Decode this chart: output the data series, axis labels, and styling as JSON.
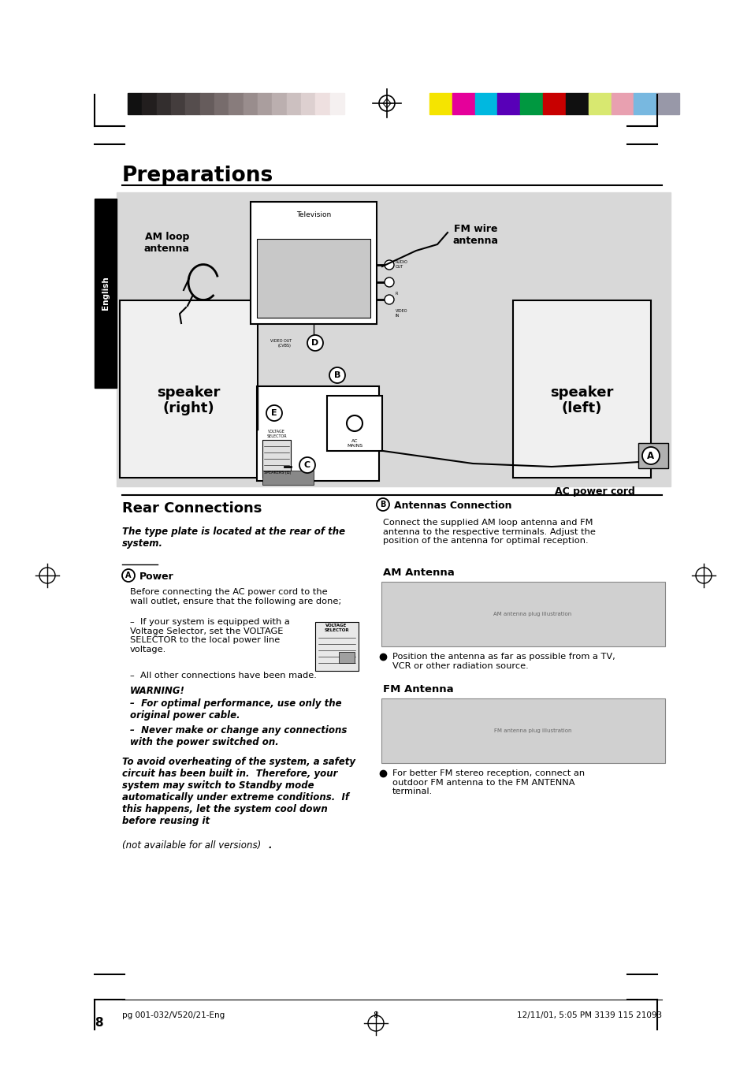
{
  "page_bg": "#ffffff",
  "color_bar_left_colors": [
    "#111111",
    "#221e1e",
    "#332e2e",
    "#443d3d",
    "#554d4d",
    "#665c5c",
    "#776c6c",
    "#887c7c",
    "#998d8d",
    "#aa9e9e",
    "#bbafaf",
    "#ccc0c0",
    "#ddd0d0",
    "#eee0e0",
    "#f5f0f0"
  ],
  "color_bar_right_colors": [
    "#f5e400",
    "#e5009a",
    "#00b8e0",
    "#5800b8",
    "#009840",
    "#c80000",
    "#101010",
    "#d8e870",
    "#e8a0b0",
    "#78b8e0",
    "#9898a8"
  ],
  "title": "Preparations",
  "section1_title": "Rear Connections",
  "section1_subtitle_bold": "The type plate is located at the rear of the\nsystem.",
  "sectionA_label": "A",
  "sectionA_heading": "Power",
  "sectionA_body1": "Before connecting the AC power cord to the\nwall outlet, ensure that the following are done;",
  "sectionA_dash1": "–  If your system is equipped with a\nVoltage Selector, set the VOLTAGE\nSELECTOR to the local power line\nvoltage.",
  "sectionA_dash2": "–  All other connections have been made.",
  "sectionA_warning_title": "WARNING!",
  "sectionA_warning1": "–  For optimal performance, use only the\noriginal power cable.",
  "sectionA_warning2": "–  Never make or change any connections\nwith the power switched on.",
  "sectionA_italic1": "To avoid overheating of the system, a safety\ncircuit has been built in.  Therefore, your\nsystem may switch to Standby mode\nautomatically under extreme conditions.  If\nthis happens, let the system cool down\nbefore reusing it ",
  "sectionA_italic2": "(not available for all versions)",
  "sectionA_italic3": ".",
  "sectionB_label": "B",
  "sectionB_title": "Antennas Connection",
  "sectionB_body": "Connect the supplied AM loop antenna and FM\nantenna to the respective terminals. Adjust the\nposition of the antenna for optimal reception.",
  "AM_antenna_title": "AM Antenna",
  "AM_antenna_note": "Position the antenna as far as possible from a TV,\nVCR or other radiation source.",
  "FM_antenna_title": "FM Antenna",
  "FM_antenna_note": "For better FM stereo reception, connect an\noutdoor FM antenna to the FM ANTENNA\nterminal.",
  "diagram_labels": {
    "tv": "Television",
    "am_loop": "AM loop\nantenna",
    "fm_wire": "FM wire\nantenna",
    "speaker_right": "speaker\n(right)",
    "speaker_left": "speaker\n(left)",
    "ac_power": "AC power cord"
  },
  "page_number": "8",
  "footer_left": "pg 001-032/V520/21-Eng",
  "footer_center": "8",
  "footer_right": "12/11/01, 5:05 PM 3139 115 21093",
  "sidebar_text": "English",
  "diagram_bg": "#d8d8d8",
  "speaker_bg": "#f0f0f0"
}
